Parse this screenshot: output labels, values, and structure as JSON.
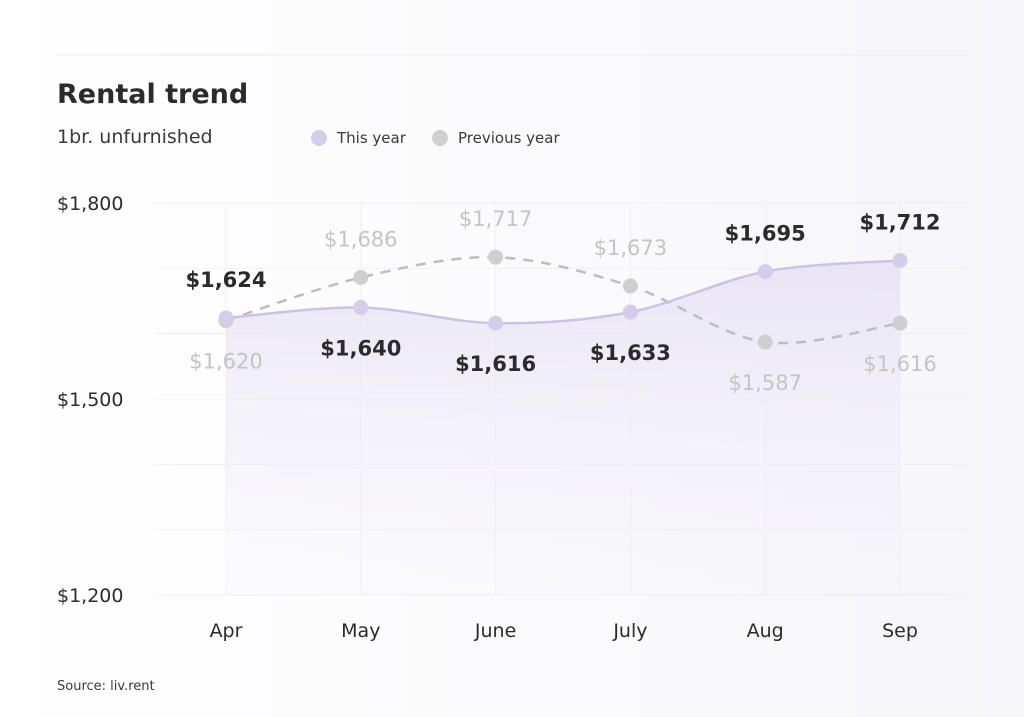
{
  "title": "Rental trend",
  "subtitle": "1br. unfurnished",
  "source": "Source: liv.rent",
  "colors": {
    "this_year": "#d4cdea",
    "this_year_line": "#cbc3e6",
    "previous_year": "#cfcfcf",
    "previous_line": "#bdbdbd",
    "prev_label": "#c4c4c4",
    "text": "#2b2b2b",
    "grid": "#eeeeee"
  },
  "chart_data": {
    "type": "line",
    "title": "Rental trend",
    "subtitle": "1br. unfurnished",
    "categories": [
      "Apr",
      "May",
      "June",
      "July",
      "Aug",
      "Sep"
    ],
    "series": [
      {
        "name": "This year",
        "values": [
          1624,
          1640,
          1616,
          1633,
          1695,
          1712
        ],
        "labels": [
          "$1,624",
          "$1,640",
          "$1,616",
          "$1,633",
          "$1,695",
          "$1,712"
        ],
        "style": "solid-area"
      },
      {
        "name": "Previous year",
        "values": [
          1620,
          1686,
          1717,
          1673,
          1587,
          1616
        ],
        "labels": [
          "$1,620",
          "$1,686",
          "$1,717",
          "$1,673",
          "$1,587",
          "$1,616"
        ],
        "style": "dashed"
      }
    ],
    "ylim": [
      1200,
      1800
    ],
    "yticks": [
      1200,
      1500,
      1800
    ],
    "ytick_labels": [
      "$1,200",
      "$1,500",
      "$1,800"
    ],
    "grid": true,
    "legend": "top"
  }
}
